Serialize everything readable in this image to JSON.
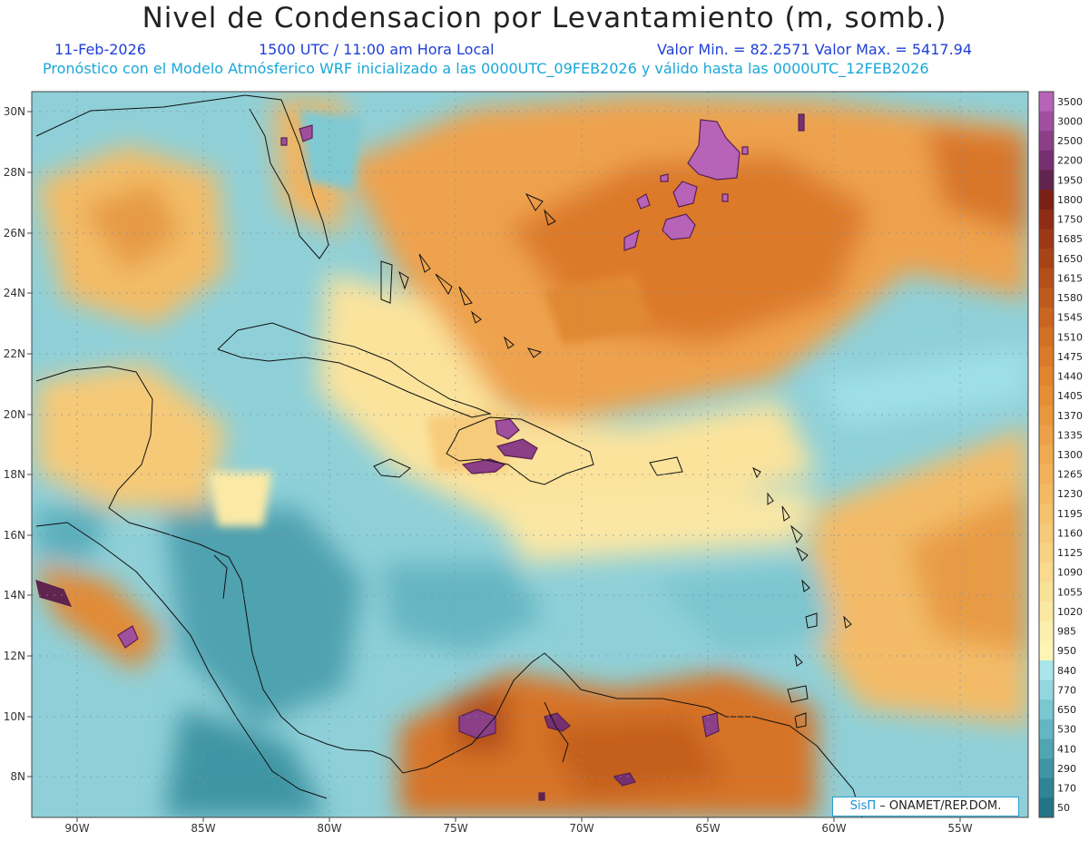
{
  "title": "Nivel de Condensacion por Levantamiento (m, somb.)",
  "date": "11-Feb-2026",
  "time": "1500 UTC / 11:00 am Hora Local",
  "minmax": "Valor Min. = 82.2571   Valor Max. = 5417.94",
  "model_info": "Pronóstico con el Modelo Atmósferico WRF inicializado a las 0000UTC_09FEB2026 y válido hasta las  0000UTC_12FEB2026",
  "credit_logo": "SisΠ",
  "credit_text": "– ONAMET/REP.DOM.",
  "lat_labels": [
    "30N",
    "28N",
    "26N",
    "24N",
    "22N",
    "20N",
    "18N",
    "16N",
    "14N",
    "12N",
    "10N",
    "8N"
  ],
  "lon_labels": [
    "90W",
    "85W",
    "80W",
    "75W",
    "70W",
    "65W",
    "60W",
    "55W"
  ],
  "colorbar": [
    {
      "label": "3500",
      "color": "#b663b8"
    },
    {
      "label": "3000",
      "color": "#a04f9e"
    },
    {
      "label": "2500",
      "color": "#8a3f86"
    },
    {
      "label": "2200",
      "color": "#76306f"
    },
    {
      "label": "1950",
      "color": "#61244f"
    },
    {
      "label": "1800",
      "color": "#7a2016"
    },
    {
      "label": "1750",
      "color": "#8e2c14"
    },
    {
      "label": "1685",
      "color": "#9c3815"
    },
    {
      "label": "1650",
      "color": "#a84317"
    },
    {
      "label": "1615",
      "color": "#b44f1a"
    },
    {
      "label": "1580",
      "color": "#bf5a1d"
    },
    {
      "label": "1545",
      "color": "#c96520"
    },
    {
      "label": "1510",
      "color": "#d27024"
    },
    {
      "label": "1475",
      "color": "#da7a29"
    },
    {
      "label": "1440",
      "color": "#e0842f"
    },
    {
      "label": "1405",
      "color": "#e58e36"
    },
    {
      "label": "1370",
      "color": "#e9973e"
    },
    {
      "label": "1335",
      "color": "#eca047"
    },
    {
      "label": "1300",
      "color": "#efa950"
    },
    {
      "label": "1265",
      "color": "#f1b25a"
    },
    {
      "label": "1230",
      "color": "#f3ba64"
    },
    {
      "label": "1195",
      "color": "#f5c26e"
    },
    {
      "label": "1160",
      "color": "#f6ca78"
    },
    {
      "label": "1125",
      "color": "#f8d283"
    },
    {
      "label": "1090",
      "color": "#f9da8e"
    },
    {
      "label": "1055",
      "color": "#fae198"
    },
    {
      "label": "1020",
      "color": "#fbe8a3"
    },
    {
      "label": "985",
      "color": "#fcefad"
    },
    {
      "label": "950",
      "color": "#fdf5b6"
    },
    {
      "label": "840",
      "color": "#a8e6ec"
    },
    {
      "label": "770",
      "color": "#92d7df"
    },
    {
      "label": "650",
      "color": "#7ac7d1"
    },
    {
      "label": "530",
      "color": "#65b6c2"
    },
    {
      "label": "410",
      "color": "#51a5b3"
    },
    {
      "label": "290",
      "color": "#3f95a4"
    },
    {
      "label": "170",
      "color": "#2f8495"
    },
    {
      "label": "50",
      "color": "#227486"
    }
  ]
}
